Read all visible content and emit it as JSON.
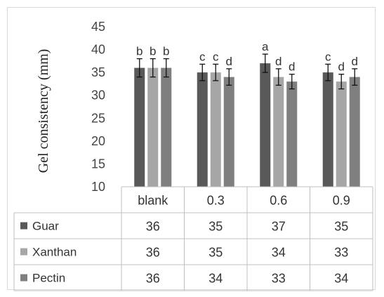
{
  "chart_data": {
    "type": "bar",
    "ylabel": "Gel consistency (mm)",
    "ylim": [
      10,
      45
    ],
    "yticks": [
      10,
      15,
      20,
      25,
      30,
      35,
      40,
      45
    ],
    "categories": [
      "blank",
      "0.3",
      "0.6",
      "0.9"
    ],
    "series": [
      {
        "name": "Guar",
        "values": [
          36,
          35,
          37,
          35
        ],
        "errors": [
          2,
          1.8,
          2,
          1.8
        ],
        "letters": [
          "b",
          "c",
          "a",
          "c"
        ],
        "color": "#595959"
      },
      {
        "name": "Xanthan",
        "values": [
          36,
          35,
          34,
          33
        ],
        "errors": [
          2,
          1.8,
          1.8,
          1.6
        ],
        "letters": [
          "b",
          "c",
          "d",
          "d"
        ],
        "color": "#a6a6a6"
      },
      {
        "name": "Pectin",
        "values": [
          36,
          34,
          33,
          34
        ],
        "errors": [
          2,
          1.8,
          1.6,
          1.8
        ],
        "letters": [
          "b",
          "d",
          "d",
          "d"
        ],
        "color": "#7f7f7f"
      }
    ],
    "data_table": true,
    "grid": false,
    "legend": "in data table"
  }
}
